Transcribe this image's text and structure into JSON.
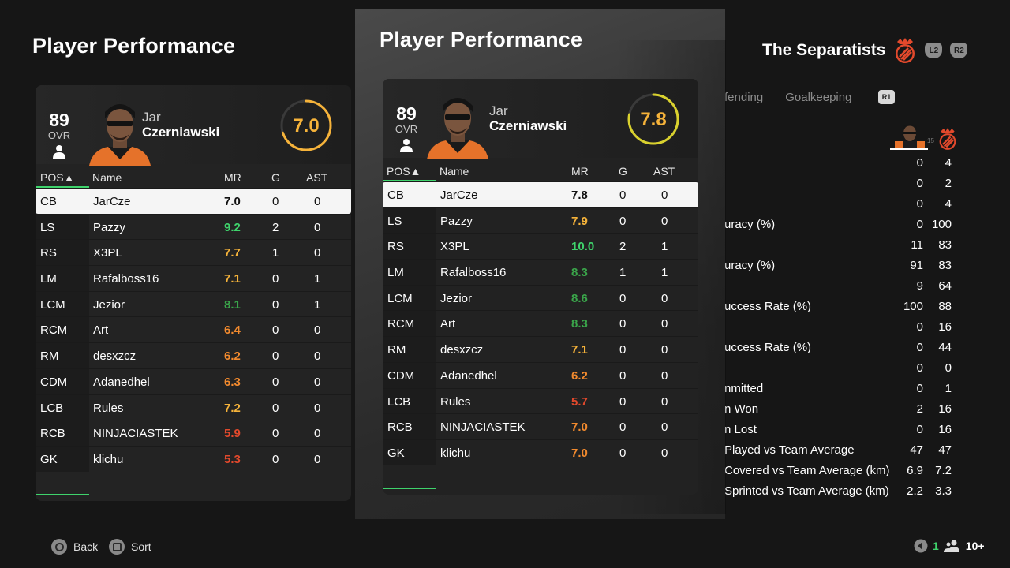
{
  "colors": {
    "green_high": "#3fd36c",
    "green_mid": "#3aa54a",
    "yellow": "#f6b33a",
    "orange": "#f28a2e",
    "red": "#e2492c",
    "selected_row": "#f5f5f5"
  },
  "left_panel": {
    "title": "Player Performance",
    "player": {
      "ovr": "89",
      "ovr_label": "OVR",
      "first_name": "Jar",
      "last_name": "Czerniawski",
      "rating": "7.0",
      "rating_fraction": 0.7
    },
    "columns": {
      "pos": "POS▲",
      "name": "Name",
      "mr": "MR",
      "g": "G",
      "ast": "AST"
    },
    "rows": [
      {
        "pos": "CB",
        "name": "JarCze",
        "mr": "7.0",
        "g": "0",
        "ast": "0",
        "mr_color": "#111111"
      },
      {
        "pos": "LS",
        "name": "Pazzy",
        "mr": "9.2",
        "g": "2",
        "ast": "0",
        "mr_color": "#3fd36c"
      },
      {
        "pos": "RS",
        "name": "X3PL",
        "mr": "7.7",
        "g": "1",
        "ast": "0",
        "mr_color": "#f6b33a"
      },
      {
        "pos": "LM",
        "name": "Rafalboss16",
        "mr": "7.1",
        "g": "0",
        "ast": "1",
        "mr_color": "#f6b33a"
      },
      {
        "pos": "LCM",
        "name": "Jezior",
        "mr": "8.1",
        "g": "0",
        "ast": "1",
        "mr_color": "#3aa54a"
      },
      {
        "pos": "RCM",
        "name": "Art",
        "mr": "6.4",
        "g": "0",
        "ast": "0",
        "mr_color": "#f28a2e"
      },
      {
        "pos": "RM",
        "name": "desxzcz",
        "mr": "6.2",
        "g": "0",
        "ast": "0",
        "mr_color": "#f28a2e"
      },
      {
        "pos": "CDM",
        "name": "Adanedhel",
        "mr": "6.3",
        "g": "0",
        "ast": "0",
        "mr_color": "#f28a2e"
      },
      {
        "pos": "LCB",
        "name": "Rules",
        "mr": "7.2",
        "g": "0",
        "ast": "0",
        "mr_color": "#f6b33a"
      },
      {
        "pos": "RCB",
        "name": "NINJACIASTEK",
        "mr": "5.9",
        "g": "0",
        "ast": "0",
        "mr_color": "#e2492c"
      },
      {
        "pos": "GK",
        "name": "klichu",
        "mr": "5.3",
        "g": "0",
        "ast": "0",
        "mr_color": "#e2492c"
      }
    ]
  },
  "center_panel": {
    "title": "Player Performance",
    "player": {
      "ovr": "89",
      "ovr_label": "OVR",
      "first_name": "Jar",
      "last_name": "Czerniawski",
      "rating": "7.8",
      "rating_fraction": 0.78
    },
    "columns": {
      "pos": "POS▲",
      "name": "Name",
      "mr": "MR",
      "g": "G",
      "ast": "AST"
    },
    "rows": [
      {
        "pos": "CB",
        "name": "JarCze",
        "mr": "7.8",
        "g": "0",
        "ast": "0",
        "mr_color": "#111111"
      },
      {
        "pos": "LS",
        "name": "Pazzy",
        "mr": "7.9",
        "g": "0",
        "ast": "0",
        "mr_color": "#f6b33a"
      },
      {
        "pos": "RS",
        "name": "X3PL",
        "mr": "10.0",
        "g": "2",
        "ast": "1",
        "mr_color": "#3fd36c"
      },
      {
        "pos": "LM",
        "name": "Rafalboss16",
        "mr": "8.3",
        "g": "1",
        "ast": "1",
        "mr_color": "#3aa54a"
      },
      {
        "pos": "LCM",
        "name": "Jezior",
        "mr": "8.6",
        "g": "0",
        "ast": "0",
        "mr_color": "#3aa54a"
      },
      {
        "pos": "RCM",
        "name": "Art",
        "mr": "8.3",
        "g": "0",
        "ast": "0",
        "mr_color": "#3aa54a"
      },
      {
        "pos": "RM",
        "name": "desxzcz",
        "mr": "7.1",
        "g": "0",
        "ast": "0",
        "mr_color": "#f6b33a"
      },
      {
        "pos": "CDM",
        "name": "Adanedhel",
        "mr": "6.2",
        "g": "0",
        "ast": "0",
        "mr_color": "#f28a2e"
      },
      {
        "pos": "LCB",
        "name": "Rules",
        "mr": "5.7",
        "g": "0",
        "ast": "0",
        "mr_color": "#e2492c"
      },
      {
        "pos": "RCB",
        "name": "NINJACIASTEK",
        "mr": "7.0",
        "g": "0",
        "ast": "0",
        "mr_color": "#f28a2e"
      },
      {
        "pos": "GK",
        "name": "klichu",
        "mr": "7.0",
        "g": "0",
        "ast": "0",
        "mr_color": "#f28a2e"
      }
    ]
  },
  "right_panel": {
    "team_name": "The Separatists",
    "buttons": {
      "l2": "L2",
      "r2": "R2",
      "r1": "R1"
    },
    "tabs": [
      "fending",
      "Goalkeeping"
    ],
    "stats": [
      {
        "label": "",
        "v1": "0",
        "v2": "4"
      },
      {
        "label": "",
        "v1": "0",
        "v2": "2"
      },
      {
        "label": "",
        "v1": "0",
        "v2": "4"
      },
      {
        "label": "uracy (%)",
        "v1": "0",
        "v2": "100"
      },
      {
        "label": "",
        "v1": "11",
        "v2": "83"
      },
      {
        "label": "uracy (%)",
        "v1": "91",
        "v2": "83"
      },
      {
        "label": "",
        "v1": "9",
        "v2": "64"
      },
      {
        "label": "uccess Rate (%)",
        "v1": "100",
        "v2": "88"
      },
      {
        "label": "",
        "v1": "0",
        "v2": "16"
      },
      {
        "label": "uccess Rate (%)",
        "v1": "0",
        "v2": "44"
      },
      {
        "label": "",
        "v1": "0",
        "v2": "0"
      },
      {
        "label": "nmitted",
        "v1": "0",
        "v2": "1"
      },
      {
        "label": "n Won",
        "v1": "2",
        "v2": "16"
      },
      {
        "label": "n Lost",
        "v1": "0",
        "v2": "16"
      },
      {
        "label": "Played vs Team Average",
        "v1": "47",
        "v2": "47"
      },
      {
        "label": "Covered vs Team Average (km)",
        "v1": "6.9",
        "v2": "7.2"
      },
      {
        "label": "Sprinted vs Team Average (km)",
        "v1": "2.2",
        "v2": "3.3"
      }
    ]
  },
  "footer": {
    "back_label": "Back",
    "sort_label": "Sort",
    "page_number": "1",
    "players_label": "10+"
  }
}
